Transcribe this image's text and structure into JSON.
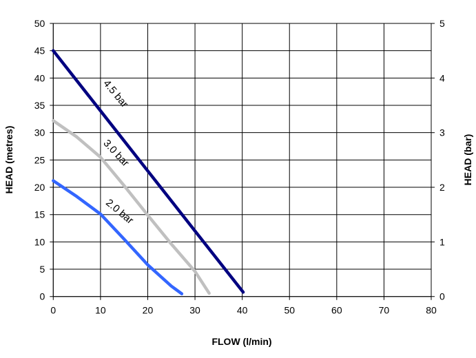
{
  "chart_data": {
    "type": "line",
    "title": "",
    "xlabel": "FLOW (l/min)",
    "ylabel": "HEAD (metres)",
    "y2label": "HEAD (bar)",
    "xlim": [
      0,
      80
    ],
    "ylim": [
      0,
      50
    ],
    "y2lim": [
      0,
      5
    ],
    "xticks": [
      0,
      10,
      20,
      30,
      40,
      50,
      60,
      70,
      80
    ],
    "yticks": [
      0,
      5,
      10,
      15,
      20,
      25,
      30,
      35,
      40,
      45,
      50
    ],
    "y2ticks": [
      0,
      1,
      2,
      3,
      4,
      5
    ],
    "grid": true,
    "legend": "inline labels",
    "series": [
      {
        "name": "4.5 bar",
        "color": "#000080",
        "x": [
          0,
          10,
          20,
          30,
          40.2
        ],
        "y": [
          45,
          34,
          23,
          12,
          0.8
        ]
      },
      {
        "name": "3.0 bar",
        "color": "#c0c0c0",
        "x": [
          0,
          5,
          10,
          15,
          20,
          25,
          30,
          33
        ],
        "y": [
          32.2,
          29.2,
          25.5,
          20.3,
          14.9,
          9.6,
          4.6,
          0.6
        ]
      },
      {
        "name": "2.0 bar",
        "color": "#3366ff",
        "x": [
          0,
          5,
          10,
          15,
          20,
          25,
          27.2
        ],
        "y": [
          21.2,
          18.3,
          15.1,
          10.5,
          5.8,
          1.9,
          0.5
        ]
      }
    ]
  }
}
